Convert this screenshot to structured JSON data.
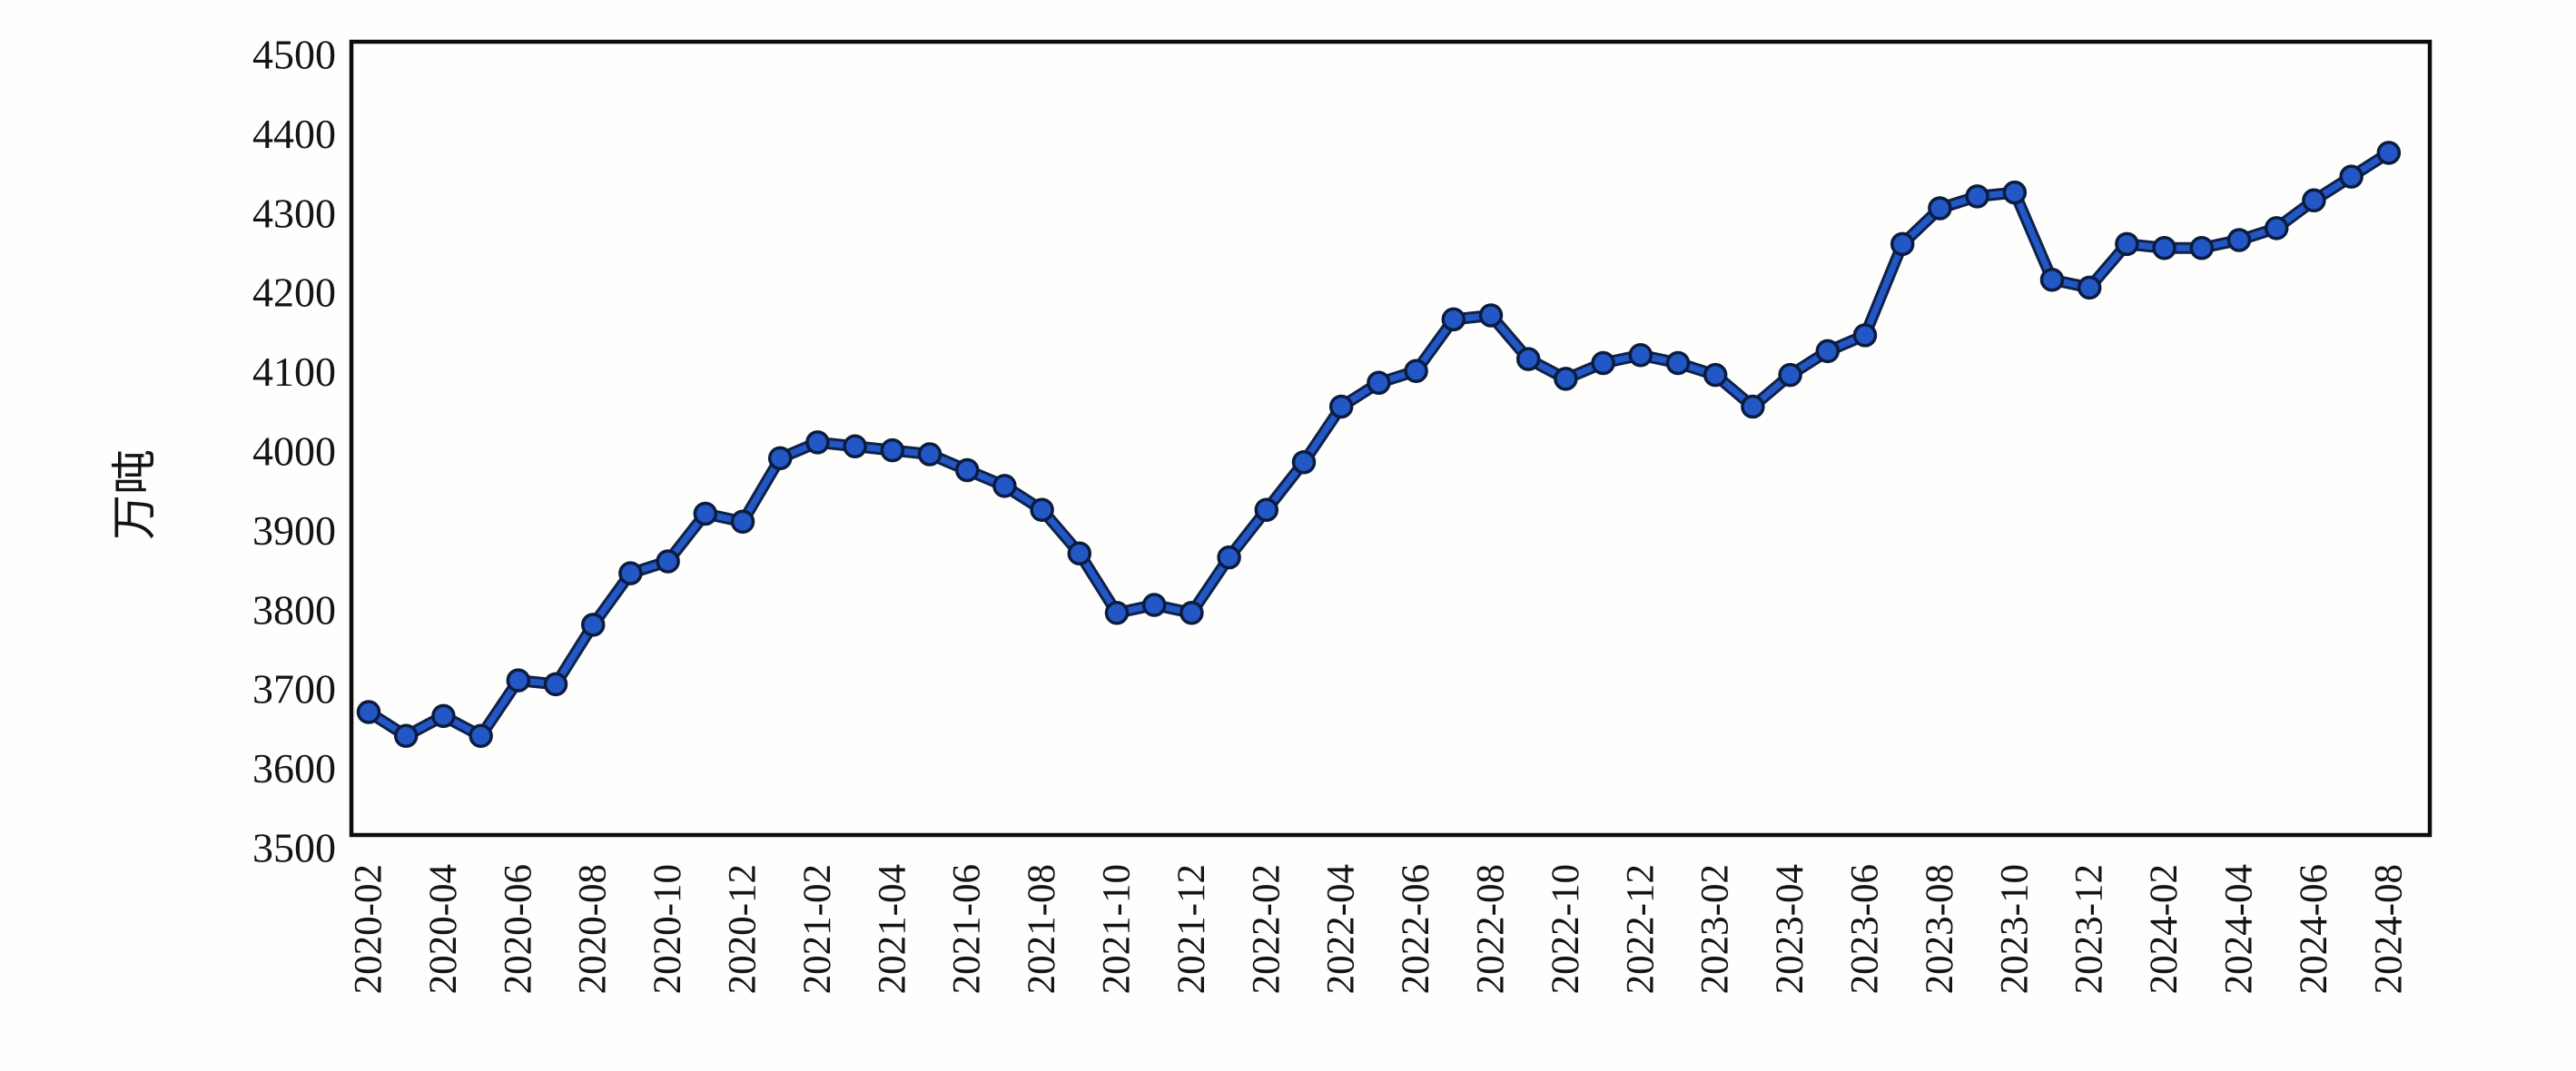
{
  "chart_data": {
    "type": "line",
    "title": "",
    "ylabel": "万吨",
    "xlabel": "",
    "ylim": [
      3500,
      4500
    ],
    "y_tick_step": 100,
    "x_tick_every": 2,
    "grid": false,
    "legend_position": "none",
    "x": [
      "2020-02",
      "2020-03",
      "2020-04",
      "2020-05",
      "2020-06",
      "2020-07",
      "2020-08",
      "2020-09",
      "2020-10",
      "2020-11",
      "2020-12",
      "2021-01",
      "2021-02",
      "2021-03",
      "2021-04",
      "2021-05",
      "2021-06",
      "2021-07",
      "2021-08",
      "2021-09",
      "2021-10",
      "2021-11",
      "2021-12",
      "2022-01",
      "2022-02",
      "2022-03",
      "2022-04",
      "2022-05",
      "2022-06",
      "2022-07",
      "2022-08",
      "2022-09",
      "2022-10",
      "2022-11",
      "2022-12",
      "2023-01",
      "2023-02",
      "2023-03",
      "2023-04",
      "2023-05",
      "2023-06",
      "2023-07",
      "2023-08",
      "2023-09",
      "2023-10",
      "2023-11",
      "2023-12",
      "2024-01",
      "2024-02",
      "2024-03",
      "2024-04",
      "2024-05",
      "2024-06",
      "2024-07",
      "2024-08"
    ],
    "values": [
      3655,
      3625,
      3650,
      3625,
      3695,
      3690,
      3765,
      3830,
      3845,
      3905,
      3895,
      3975,
      3995,
      3990,
      3985,
      3980,
      3960,
      3940,
      3910,
      3855,
      3780,
      3790,
      3780,
      3850,
      3910,
      3970,
      4040,
      4070,
      4085,
      4150,
      4155,
      4100,
      4075,
      4095,
      4105,
      4095,
      4080,
      4040,
      4080,
      4110,
      4130,
      4245,
      4290,
      4305,
      4310,
      4200,
      4190,
      4245,
      4240,
      4240,
      4250,
      4265,
      4300,
      4330,
      4360
    ],
    "y_tick_labels": [
      "4500",
      "4400",
      "4300",
      "4200",
      "4100",
      "4000",
      "3900",
      "3800",
      "3700",
      "3600",
      "3500"
    ],
    "x_tick_labels": [
      "2020-02",
      "2020-04",
      "2020-06",
      "2020-08",
      "2020-10",
      "2020-12",
      "2021-02",
      "2021-04",
      "2021-06",
      "2021-08",
      "2021-10",
      "2021-12",
      "2022-02",
      "2022-04",
      "2022-06",
      "2022-08",
      "2022-10",
      "2022-12",
      "2023-02",
      "2023-04",
      "2023-06",
      "2023-08",
      "2023-10",
      "2023-12",
      "2024-02",
      "2024-04",
      "2024-06",
      "2024-08"
    ],
    "colors": {
      "line": "#2257c5",
      "line_outline": "#0e2147",
      "marker_fill": "#2257c5",
      "marker_outline": "#0c1c3e",
      "frame": "#0d0d0d",
      "text": "#141414",
      "background": "#fefefd"
    }
  }
}
